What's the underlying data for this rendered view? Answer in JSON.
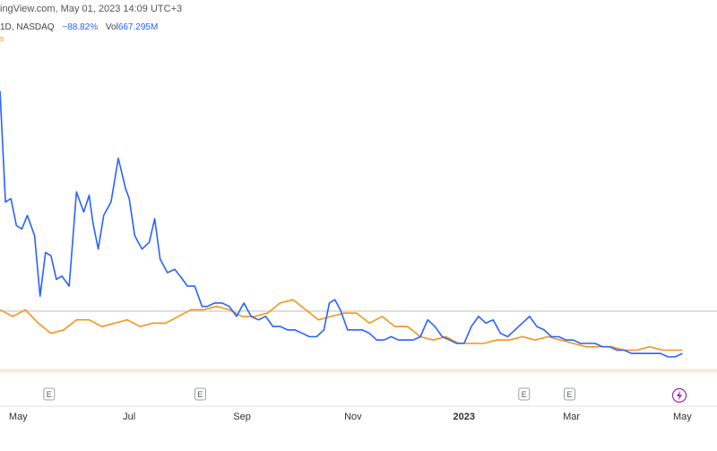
{
  "header": {
    "source_line": "ingView.com, May 01, 2023 14:09 UTC+3",
    "interval": "1D,",
    "exchange": "NASDAQ",
    "change": "−88.82%",
    "vol_label": "Vol",
    "vol_value": "667.295M",
    "orange_mark": "s"
  },
  "colors": {
    "primary": "#2962ff",
    "secondary": "#f7931a",
    "separator": "#bdbdbd",
    "earnings": "#9aa0a6",
    "lightning": "#9c27b0"
  },
  "events": [
    {
      "label": "E",
      "date": "2022-05-18"
    },
    {
      "label": "E",
      "date": "2022-08-09"
    },
    {
      "label": "E",
      "date": "2023-02-03"
    },
    {
      "label": "E",
      "date": "2023-02-28"
    }
  ],
  "lightning_icon": "lightning-icon",
  "chart_data": {
    "type": "line",
    "title": "",
    "xlabel": "",
    "ylabel": "",
    "x_ticks": [
      {
        "label": "May",
        "date": "2022-05-01",
        "bold": false
      },
      {
        "label": "Jul",
        "date": "2022-07-01",
        "bold": false
      },
      {
        "label": "Sep",
        "date": "2022-09-01",
        "bold": false
      },
      {
        "label": "Nov",
        "date": "2022-11-01",
        "bold": false
      },
      {
        "label": "2023",
        "date": "2023-01-01",
        "bold": true
      },
      {
        "label": "Mar",
        "date": "2023-03-01",
        "bold": false
      },
      {
        "label": "May",
        "date": "2023-05-01",
        "bold": false
      }
    ],
    "xlim": [
      "2022-04-21",
      "2023-05-20"
    ],
    "ylim": [
      -100,
      10
    ],
    "grid": false,
    "series": [
      {
        "name": "",
        "color": "#2962ff",
        "dates": [
          "2022-04-21",
          "2022-04-24",
          "2022-04-27",
          "2022-04-30",
          "2022-05-03",
          "2022-05-06",
          "2022-05-10",
          "2022-05-13",
          "2022-05-16",
          "2022-05-19",
          "2022-05-22",
          "2022-05-25",
          "2022-05-29",
          "2022-06-02",
          "2022-06-06",
          "2022-06-09",
          "2022-06-11",
          "2022-06-14",
          "2022-06-17",
          "2022-06-21",
          "2022-06-25",
          "2022-06-29",
          "2022-07-01",
          "2022-07-04",
          "2022-07-08",
          "2022-07-12",
          "2022-07-15",
          "2022-07-18",
          "2022-07-22",
          "2022-07-26",
          "2022-07-29",
          "2022-08-02",
          "2022-08-06",
          "2022-08-10",
          "2022-08-13",
          "2022-08-17",
          "2022-08-21",
          "2022-08-25",
          "2022-08-29",
          "2022-09-02",
          "2022-09-06",
          "2022-09-10",
          "2022-09-14",
          "2022-09-18",
          "2022-09-22",
          "2022-09-26",
          "2022-09-30",
          "2022-10-04",
          "2022-10-08",
          "2022-10-12",
          "2022-10-16",
          "2022-10-19",
          "2022-10-22",
          "2022-10-25",
          "2022-10-29",
          "2022-11-02",
          "2022-11-06",
          "2022-11-10",
          "2022-11-14",
          "2022-11-18",
          "2022-11-22",
          "2022-11-26",
          "2022-11-30",
          "2022-12-04",
          "2022-12-08",
          "2022-12-12",
          "2022-12-16",
          "2022-12-20",
          "2022-12-24",
          "2022-12-28",
          "2023-01-01",
          "2023-01-05",
          "2023-01-09",
          "2023-01-13",
          "2023-01-17",
          "2023-01-21",
          "2023-01-25",
          "2023-01-29",
          "2023-02-02",
          "2023-02-06",
          "2023-02-10",
          "2023-02-14",
          "2023-02-18",
          "2023-02-22",
          "2023-02-26",
          "2023-03-02",
          "2023-03-06",
          "2023-03-10",
          "2023-03-14",
          "2023-03-18",
          "2023-03-22",
          "2023-03-26",
          "2023-03-30",
          "2023-04-03",
          "2023-04-07",
          "2023-04-11",
          "2023-04-15",
          "2023-04-19",
          "2023-04-23",
          "2023-04-27",
          "2023-05-01"
        ],
        "values": [
          -17,
          -50,
          -49,
          -57,
          -58,
          -54,
          -60,
          -78,
          -65,
          -66,
          -73,
          -72,
          -75,
          -47,
          -53,
          -48,
          -56,
          -64,
          -54,
          -50,
          -37,
          -46,
          -49,
          -60,
          -64,
          -62,
          -55,
          -67,
          -71,
          -70,
          -72,
          -75,
          -75,
          -81,
          -81,
          -80,
          -80,
          -81,
          -84,
          -80,
          -84,
          -85,
          -84,
          -87,
          -87,
          -88,
          -88,
          -89,
          -90,
          -90,
          -88,
          -80,
          -79,
          -82,
          -88,
          -88,
          -88,
          -89,
          -91,
          -91,
          -90,
          -91,
          -91,
          -91,
          -90,
          -85,
          -87,
          -90,
          -91,
          -92,
          -92,
          -87,
          -84,
          -86,
          -85,
          -89,
          -90,
          -88,
          -86,
          -84,
          -87,
          -88,
          -90,
          -90,
          -91,
          -91,
          -92,
          -92,
          -92,
          -93,
          -93,
          -94,
          -94,
          -95,
          -95,
          -95,
          -95,
          -95,
          -96,
          -96,
          -95
        ]
      },
      {
        "name": "",
        "color": "#f7931a",
        "dates": [
          "2022-04-21",
          "2022-04-28",
          "2022-05-05",
          "2022-05-12",
          "2022-05-19",
          "2022-05-26",
          "2022-06-02",
          "2022-06-09",
          "2022-06-16",
          "2022-06-23",
          "2022-06-30",
          "2022-07-07",
          "2022-07-14",
          "2022-07-21",
          "2022-07-28",
          "2022-08-04",
          "2022-08-11",
          "2022-08-18",
          "2022-08-25",
          "2022-09-01",
          "2022-09-08",
          "2022-09-15",
          "2022-09-22",
          "2022-09-29",
          "2022-10-06",
          "2022-10-13",
          "2022-10-20",
          "2022-10-27",
          "2022-11-03",
          "2022-11-10",
          "2022-11-17",
          "2022-11-24",
          "2022-12-01",
          "2022-12-08",
          "2022-12-15",
          "2022-12-22",
          "2022-12-29",
          "2023-01-05",
          "2023-01-12",
          "2023-01-19",
          "2023-01-26",
          "2023-02-02",
          "2023-02-09",
          "2023-02-16",
          "2023-02-23",
          "2023-03-02",
          "2023-03-09",
          "2023-03-16",
          "2023-03-23",
          "2023-03-30",
          "2023-04-06",
          "2023-04-13",
          "2023-04-20",
          "2023-04-27",
          "2023-05-01"
        ],
        "values": [
          -82,
          -84,
          -82,
          -86,
          -89,
          -88,
          -85,
          -85,
          -87,
          -86,
          -85,
          -87,
          -86,
          -86,
          -84,
          -82,
          -82,
          -81,
          -82,
          -84,
          -84,
          -83,
          -80,
          -79,
          -82,
          -85,
          -84,
          -83,
          -83,
          -86,
          -84,
          -87,
          -87,
          -90,
          -91,
          -90,
          -92,
          -92,
          -92,
          -91,
          -91,
          -90,
          -91,
          -90,
          -91,
          -92,
          -93,
          -93,
          -93,
          -94,
          -94,
          -93,
          -94,
          -94,
          -94
        ]
      }
    ]
  }
}
